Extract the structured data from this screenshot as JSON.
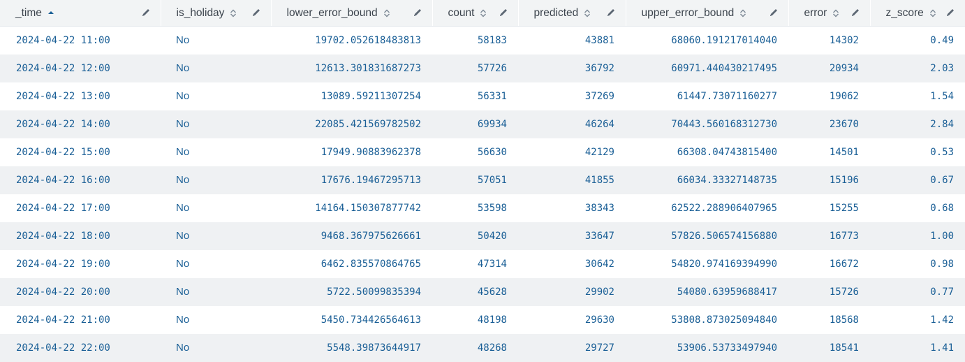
{
  "columns": [
    {
      "label": "_time",
      "sort": "asc"
    },
    {
      "label": "is_holiday",
      "sort": "none"
    },
    {
      "label": "lower_error_bound",
      "sort": "none"
    },
    {
      "label": "count",
      "sort": "none"
    },
    {
      "label": "predicted",
      "sort": "none"
    },
    {
      "label": "upper_error_bound",
      "sort": "none"
    },
    {
      "label": "error",
      "sort": "none"
    },
    {
      "label": "z_score",
      "sort": "none"
    }
  ],
  "rows": [
    [
      "2024-04-22 11:00",
      "No",
      "19702.052618483813",
      "58183",
      "43881",
      "68060.191217014040",
      "14302",
      "0.49"
    ],
    [
      "2024-04-22 12:00",
      "No",
      "12613.301831687273",
      "57726",
      "36792",
      "60971.440430217495",
      "20934",
      "2.03"
    ],
    [
      "2024-04-22 13:00",
      "No",
      "13089.59211307254",
      "56331",
      "37269",
      "61447.73071160277",
      "19062",
      "1.54"
    ],
    [
      "2024-04-22 14:00",
      "No",
      "22085.421569782502",
      "69934",
      "46264",
      "70443.560168312730",
      "23670",
      "2.84"
    ],
    [
      "2024-04-22 15:00",
      "No",
      "17949.90883962378",
      "56630",
      "42129",
      "66308.04743815400",
      "14501",
      "0.53"
    ],
    [
      "2024-04-22 16:00",
      "No",
      "17676.19467295713",
      "57051",
      "41855",
      "66034.33327148735",
      "15196",
      "0.67"
    ],
    [
      "2024-04-22 17:00",
      "No",
      "14164.150307877742",
      "53598",
      "38343",
      "62522.288906407965",
      "15255",
      "0.68"
    ],
    [
      "2024-04-22 18:00",
      "No",
      "9468.367975626661",
      "50420",
      "33647",
      "57826.506574156880",
      "16773",
      "1.00"
    ],
    [
      "2024-04-22 19:00",
      "No",
      "6462.835570864765",
      "47314",
      "30642",
      "54820.974169394990",
      "16672",
      "0.98"
    ],
    [
      "2024-04-22 20:00",
      "No",
      "5722.50099835394",
      "45628",
      "29902",
      "54080.63959688417",
      "15726",
      "0.77"
    ],
    [
      "2024-04-22 21:00",
      "No",
      "5450.734426564613",
      "48198",
      "29630",
      "53808.873025094840",
      "18568",
      "1.42"
    ],
    [
      "2024-04-22 22:00",
      "No",
      "5548.39873644917",
      "48268",
      "29727",
      "53906.53733497940",
      "18541",
      "1.41"
    ]
  ],
  "colors": {
    "header_bg": "#f2f4f5",
    "header_text": "#3c444d",
    "cell_text": "#1a5f96",
    "row_alt_bg": "#eff1f3"
  },
  "icons": {
    "sort_asc": "caret-up-icon",
    "sort_none": "sort-updown-icon",
    "edit": "pencil-icon"
  }
}
